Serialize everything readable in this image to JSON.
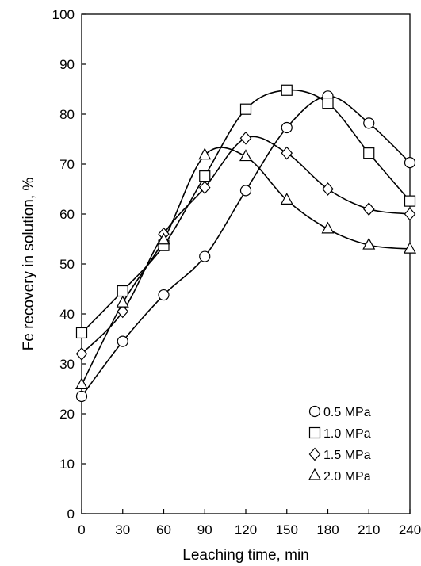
{
  "chart_data": {
    "type": "scatter",
    "title": "",
    "xlabel": "Leaching time, min",
    "ylabel": "Fe recovery in solution, %",
    "xlim": [
      0,
      240
    ],
    "ylim": [
      0,
      100
    ],
    "xticks": [
      0,
      30,
      60,
      90,
      120,
      150,
      180,
      210,
      240
    ],
    "yticks": [
      0,
      10,
      20,
      30,
      40,
      50,
      60,
      70,
      80,
      90,
      100
    ],
    "grid": false,
    "legend_position": "bottom-right",
    "smoothed_lines": true,
    "series": [
      {
        "name": "0.5 MPa",
        "marker": "circle",
        "x": [
          0,
          30,
          60,
          90,
          120,
          150,
          180,
          210,
          240
        ],
        "y": [
          23.5,
          34.5,
          43.8,
          51.5,
          64.7,
          77.3,
          83.6,
          78.2,
          70.3
        ]
      },
      {
        "name": "1.0 MPa",
        "marker": "square",
        "x": [
          0,
          30,
          60,
          90,
          120,
          150,
          180,
          210,
          240
        ],
        "y": [
          36.2,
          44.6,
          53.7,
          67.6,
          81.0,
          84.8,
          82.2,
          72.2,
          62.6
        ]
      },
      {
        "name": "1.5 MPa",
        "marker": "diamond",
        "x": [
          0,
          30,
          60,
          90,
          120,
          150,
          180,
          210,
          240
        ],
        "y": [
          32.0,
          40.5,
          56.0,
          65.3,
          75.2,
          72.2,
          65.0,
          61.0,
          60.0
        ]
      },
      {
        "name": "2.0 MPa",
        "marker": "triangle",
        "x": [
          0,
          30,
          60,
          90,
          120,
          150,
          180,
          210,
          240
        ],
        "y": [
          25.8,
          42.2,
          54.8,
          71.8,
          71.5,
          62.8,
          57.0,
          53.8,
          53.0
        ]
      }
    ]
  }
}
